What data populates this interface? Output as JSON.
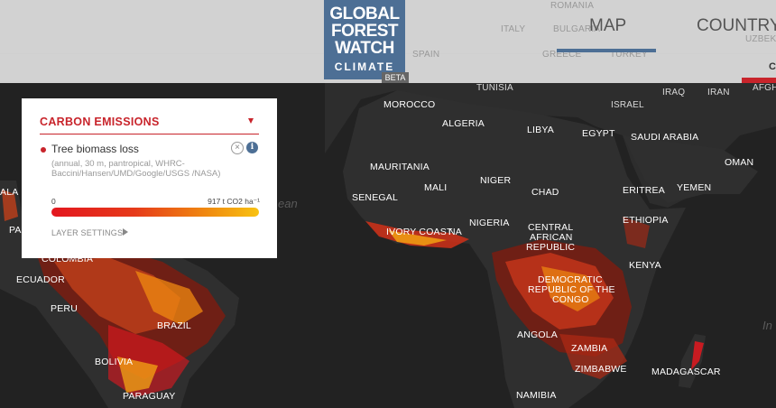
{
  "header": {
    "logo": {
      "line1": "GLOBAL",
      "line2": "FOREST",
      "line3": "WATCH",
      "line4": "CLIMATE",
      "badge": "BETA"
    },
    "nav": {
      "map": "MAP",
      "country": "COUNTRY"
    },
    "cutoff_tab": "C"
  },
  "panel": {
    "title": "CARBON EMISSIONS",
    "layer_name": "Tree biomass loss",
    "layer_description": "(annual, 30 m, pantropical, WHRC-Baccini/Hansen/UMD/Google/USGS /NASA)",
    "legend_min": "0",
    "legend_max": "917 t CO2 ha⁻¹",
    "legend_colors": [
      "#e3171f",
      "#f08a10",
      "#f8c212"
    ],
    "settings_label": "LAYER SETTINGS",
    "icons": [
      "close-circle-icon",
      "info-icon",
      "chevron-down-icon",
      "triangle-right-icon"
    ]
  },
  "map": {
    "bar_labels": {
      "romania": "ROMANIA",
      "italy": "ITALY",
      "bulgaria": "BULGARIA",
      "spain": "SPAIN",
      "greece": "GREECE",
      "turkey": "TURKEY",
      "uzbek": "UZBEK"
    },
    "countries": {
      "tunisia": "TUNISIA",
      "morocco": "MOROCCO",
      "iraq": "IRAQ",
      "iran": "IRAN",
      "afgh": "AFGH",
      "israel": "ISRAEL",
      "algeria": "ALGERIA",
      "libya": "LIBYA",
      "egypt": "EGYPT",
      "saudi": "SAUDI ARABIA",
      "oman": "OMAN",
      "mauritania": "MAURITANIA",
      "mali": "MALI",
      "niger": "NIGER",
      "chad": "CHAD",
      "eritrea": "ERITREA",
      "yemen": "YEMEN",
      "senegal": "SENEGAL",
      "nigeria": "NIGERIA",
      "ethiopia": "ETHIOPIA",
      "ivory": "IVORY COAST",
      "ghana": "NA",
      "car1": "CENTRAL",
      "car2": "AFRICAN",
      "car3": "REPUBLIC",
      "kenya": "KENYA",
      "drc1": "DEMOCRATIC",
      "drc2": "REPUBLIC OF THE",
      "drc3": "CONGO",
      "angola": "ANGOLA",
      "zambia": "ZAMBIA",
      "zimbabwe": "ZIMBABWE",
      "madagascar": "MADAGASCAR",
      "namibia": "NAMIBIA",
      "colombia": "COLOMBIA",
      "ecuador": "ECUADOR",
      "peru": "PERU",
      "brazil": "BRAZIL",
      "bolivia": "BOLIVIA",
      "paraguay": "PARAGUAY",
      "ala": "ALA",
      "pa": "PA"
    },
    "ocean_labels": {
      "atlantic": "ean",
      "indian": "In"
    }
  }
}
